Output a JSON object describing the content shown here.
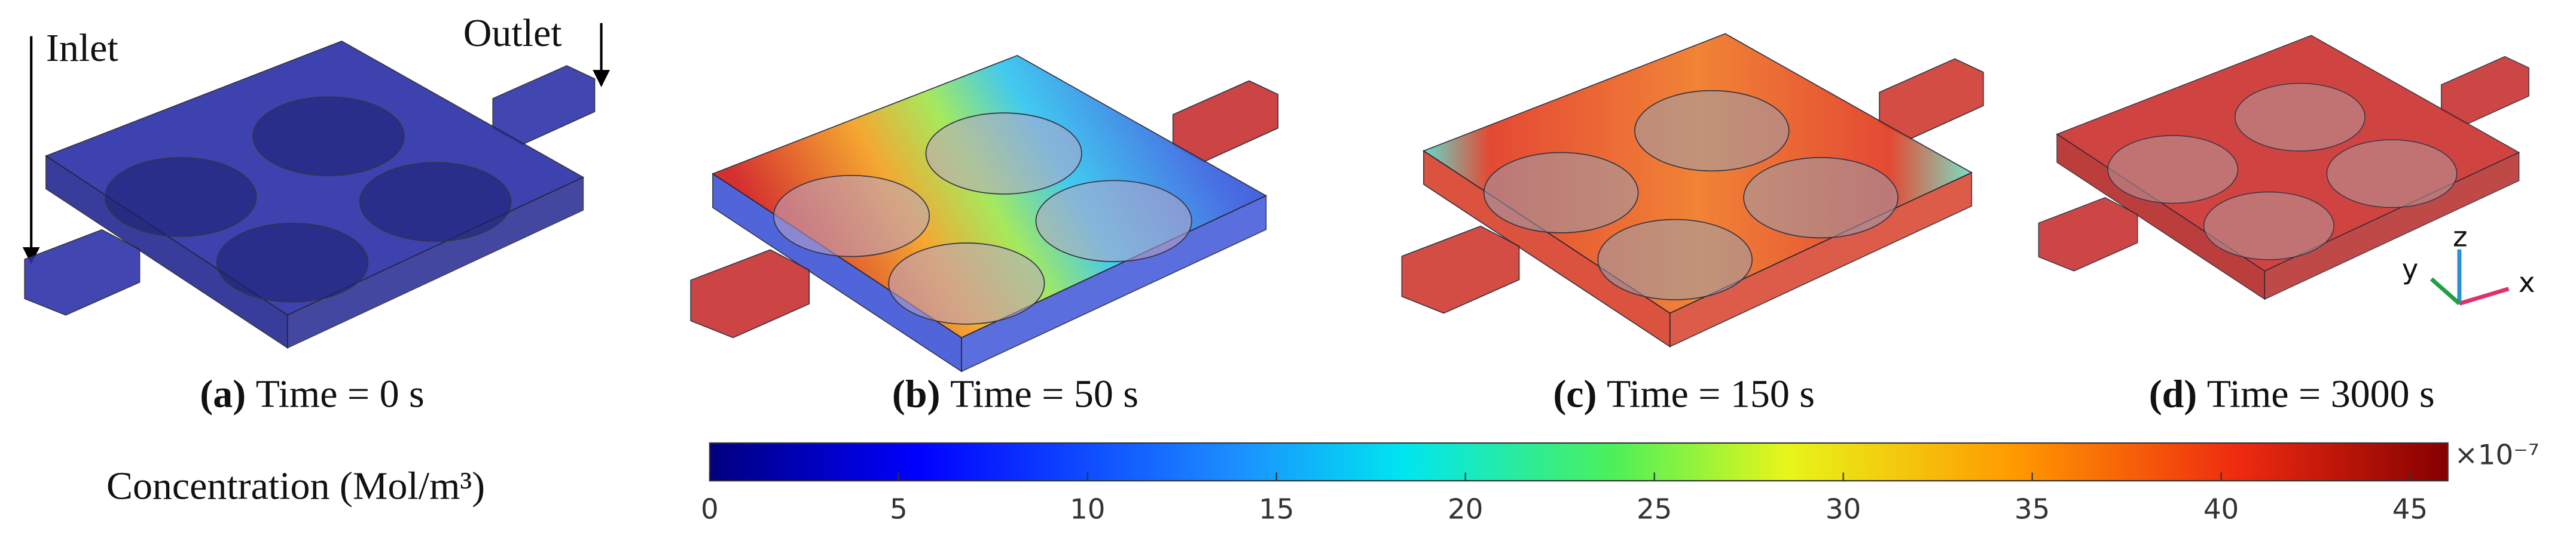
{
  "annotations": {
    "inlet": "Inlet",
    "outlet": "Outlet"
  },
  "panels": [
    {
      "label": "(a)",
      "caption": "Time = 0 s"
    },
    {
      "label": "(b)",
      "caption": "Time = 50 s"
    },
    {
      "label": "(c)",
      "caption": "Time = 150 s"
    },
    {
      "label": "(d)",
      "caption": "Time = 3000 s"
    }
  ],
  "axes": {
    "x": "x",
    "y": "y",
    "z": "z"
  },
  "colorbar": {
    "title": "Concentration (Mol/m³)",
    "multiplier": "×10⁻⁷",
    "lim": [
      0,
      46
    ],
    "ticks": [
      0,
      5,
      10,
      15,
      20,
      25,
      30,
      35,
      40,
      45
    ]
  }
}
